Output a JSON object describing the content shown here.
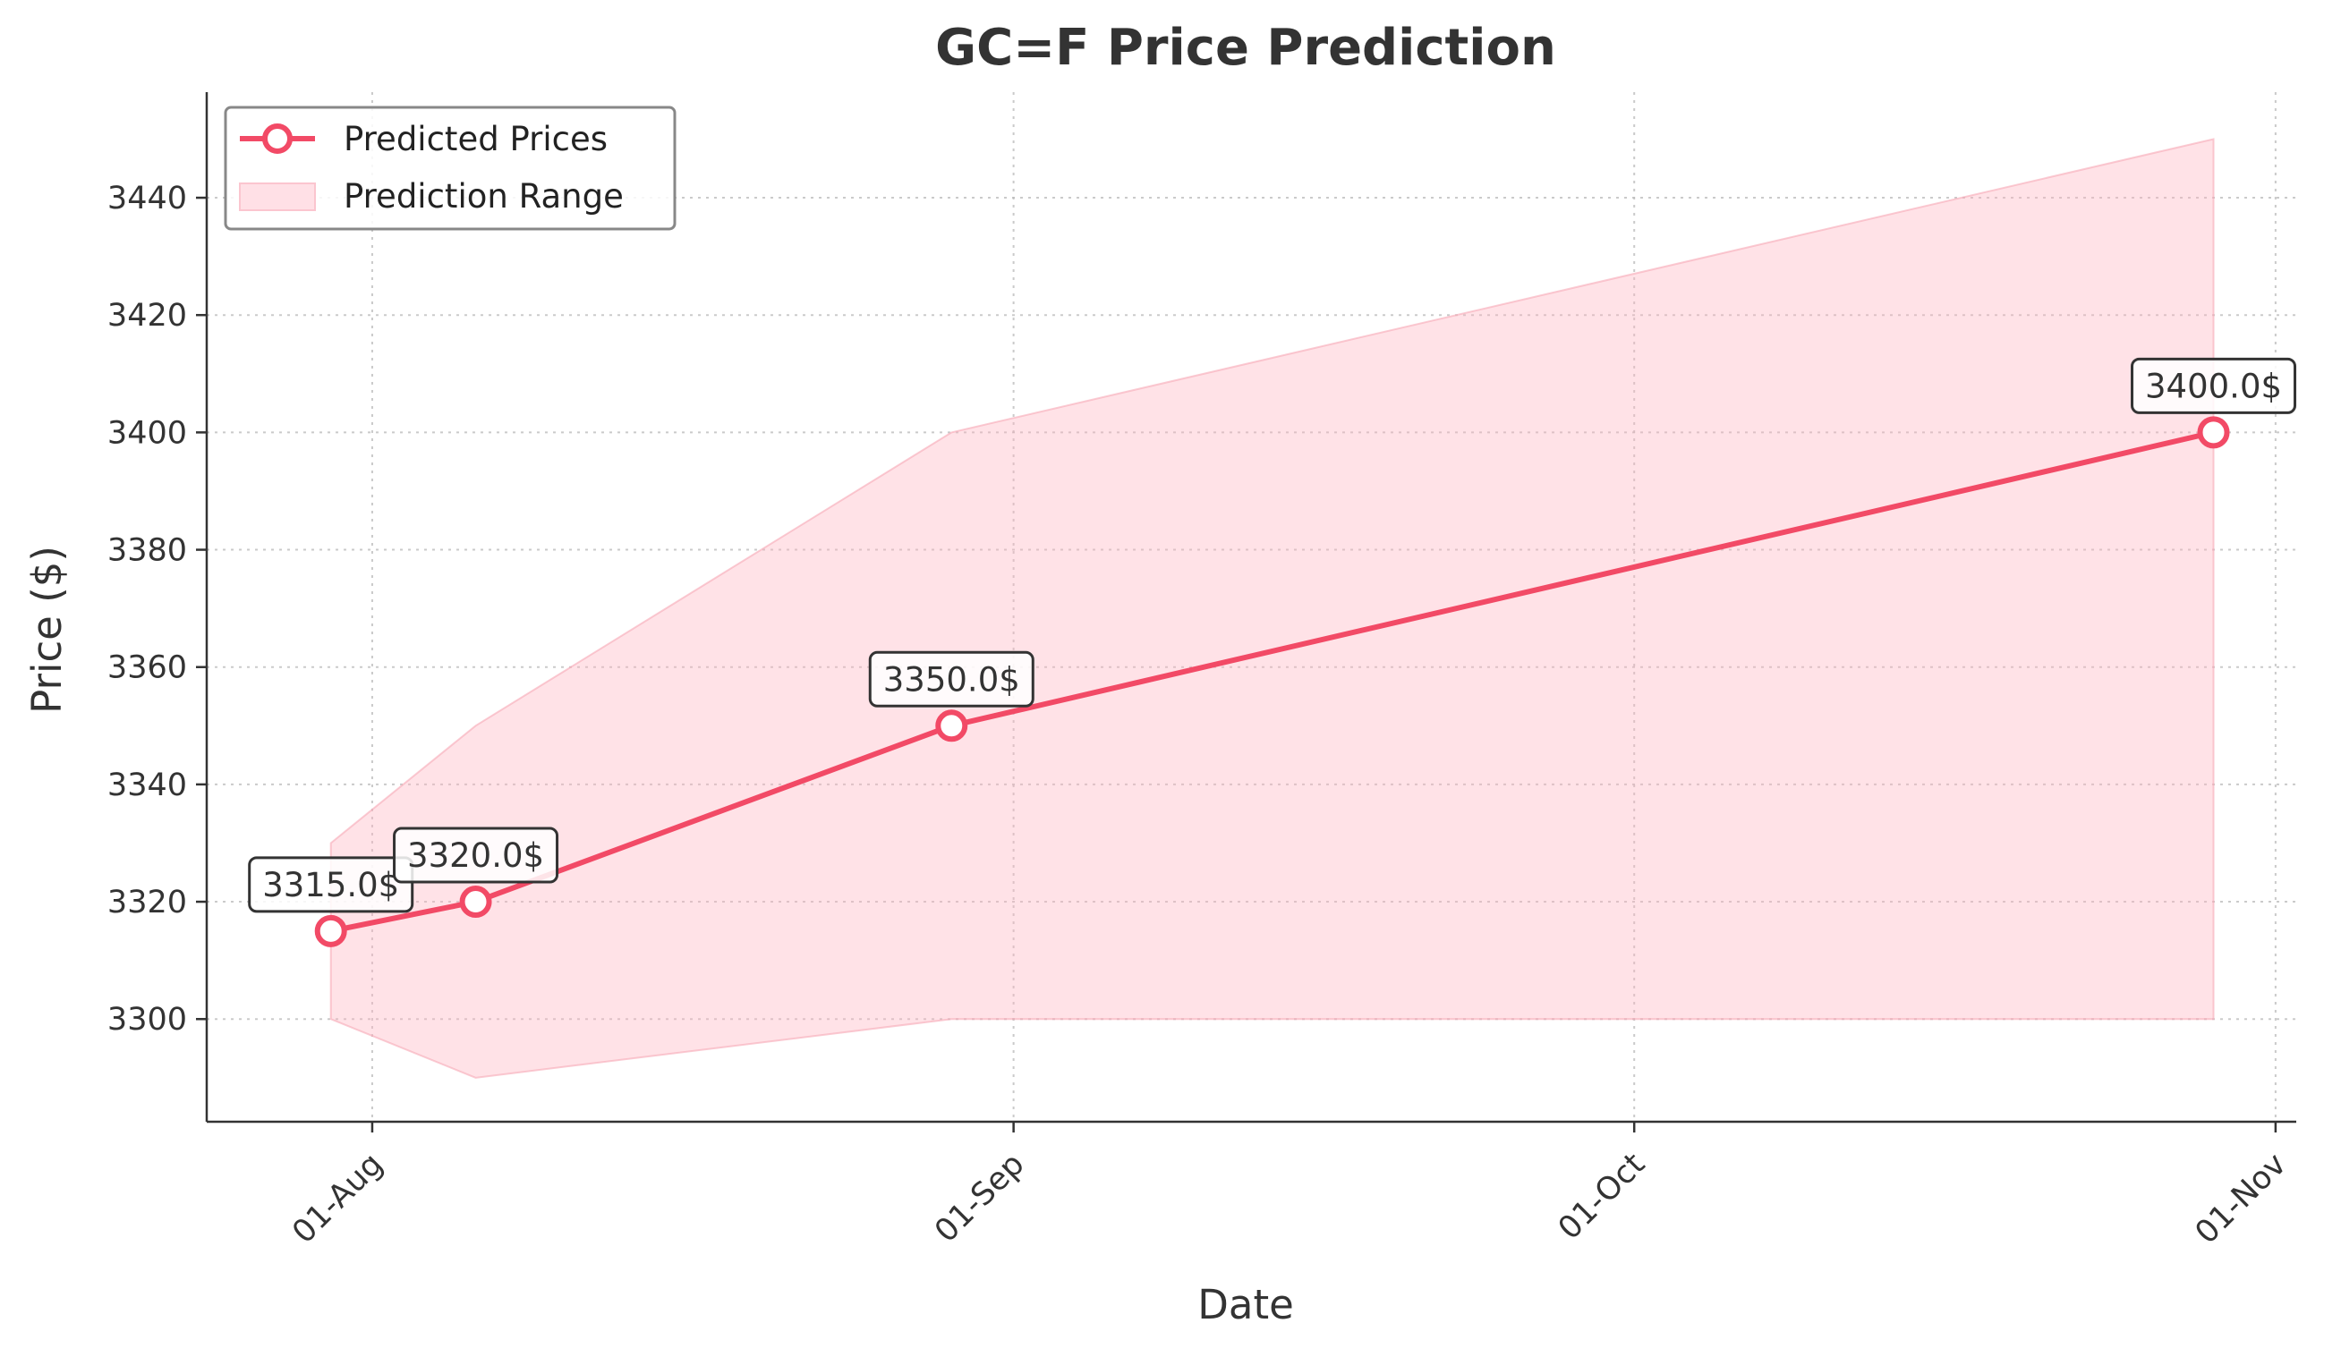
{
  "chart_data": {
    "type": "line",
    "title": "GC=F Price Prediction",
    "xlabel": "Date",
    "ylabel": "Price ($)",
    "x_ticks": [
      "01-Aug",
      "01-Sep",
      "01-Oct",
      "01-Nov"
    ],
    "x_tick_dates": [
      "2025-08-01",
      "2025-09-01",
      "2025-10-01",
      "2025-11-01"
    ],
    "x_range": [
      "2025-07-24",
      "2025-11-02"
    ],
    "y_ticks": [
      3300,
      3320,
      3340,
      3360,
      3380,
      3400,
      3420,
      3440
    ],
    "ylim": [
      3282.5,
      3458
    ],
    "grid": true,
    "legend_position": "top-left",
    "series": [
      {
        "name": "Predicted Prices",
        "color": "#f24a66",
        "x": [
          "2025-07-30",
          "2025-08-06",
          "2025-08-29",
          "2025-10-29"
        ],
        "values": [
          3315.0,
          3320.0,
          3350.0,
          3400.0
        ],
        "labels": [
          "3315.0$",
          "3320.0$",
          "3350.0$",
          "3400.0$"
        ]
      }
    ],
    "range": {
      "name": "Prediction Range",
      "color": "#ffb3c1",
      "x": [
        "2025-07-30",
        "2025-08-06",
        "2025-08-29",
        "2025-10-29"
      ],
      "upper": [
        3330,
        3350,
        3400,
        3450
      ],
      "lower": [
        3300,
        3290,
        3300,
        3300
      ]
    }
  }
}
